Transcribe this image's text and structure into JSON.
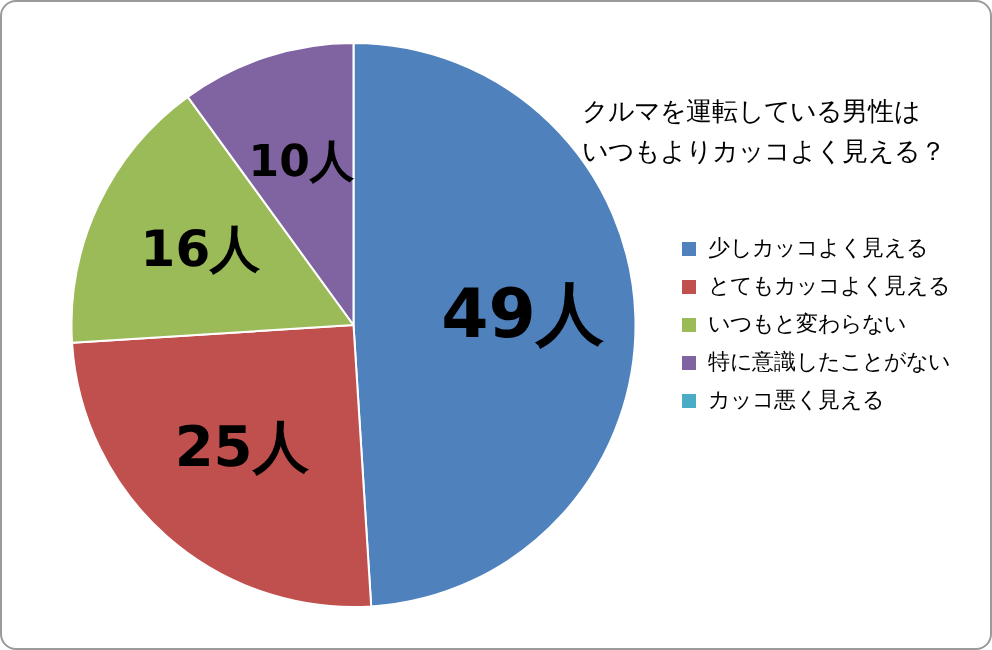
{
  "chart_data": {
    "type": "pie",
    "title": "クルマを運転している男性はいつもよりカッコよく見える？",
    "categories": [
      "少しカッコよく見える",
      "とてもカッコよく見える",
      "いつもと変わらない",
      "特に意識したことがない",
      "カッコ悪く見える"
    ],
    "values": [
      49,
      25,
      16,
      10,
      0
    ],
    "colors": [
      "#4f81bd",
      "#c0504d",
      "#9bbb59",
      "#8064a2",
      "#4bacc6"
    ],
    "value_labels": [
      "49人",
      "25人",
      "16人",
      "10人",
      null
    ],
    "legend": "right"
  }
}
